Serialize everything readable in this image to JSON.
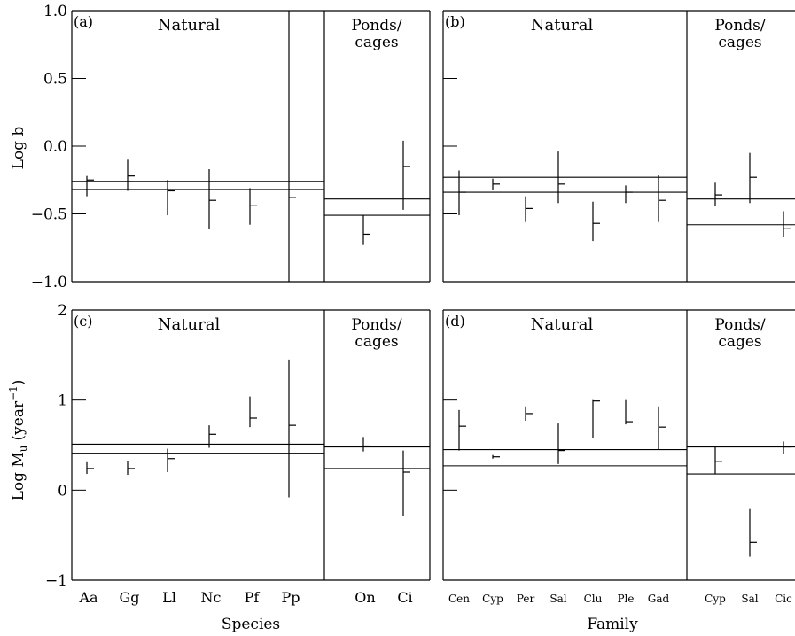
{
  "ylabels": {
    "top_main": "Log b",
    "bottom_main": "Log M",
    "bottom_sub": "u",
    "bottom_unit_open": "(year",
    "bottom_sup": "−1",
    "bottom_unit_close": ")"
  },
  "xlabels": {
    "left": "Species",
    "right": "Family"
  },
  "chart_data": [
    {
      "type": "error-bar",
      "panel_label": "(a)",
      "left_group": "Natural",
      "right_group": [
        "Ponds/",
        "cages"
      ],
      "ylim": [
        -1.0,
        1.0
      ],
      "yticks": [
        1.0,
        0.5,
        0.0,
        -0.5,
        -1.0
      ],
      "ytick_labels": [
        "1.0",
        "0.5",
        "0.0",
        "−0.5",
        "−1.0"
      ],
      "categories": [
        "Aa",
        "Gg",
        "Ll",
        "Nc",
        "Pf",
        "Pp",
        "On",
        "Ci"
      ],
      "n_natural": 6,
      "points": [
        {
          "mean": -0.25,
          "low": -0.37,
          "high": -0.22
        },
        {
          "mean": -0.22,
          "low": -0.33,
          "high": -0.1
        },
        {
          "mean": -0.33,
          "low": -0.51,
          "high": -0.25
        },
        {
          "mean": -0.4,
          "low": -0.61,
          "high": -0.17
        },
        {
          "mean": -0.44,
          "low": -0.58,
          "high": -0.31
        },
        {
          "mean": -0.38,
          "low": -1.0,
          "high": 1.0
        },
        {
          "mean": -0.65,
          "low": -0.73,
          "high": -0.51
        },
        {
          "mean": -0.15,
          "low": -0.47,
          "high": 0.04
        }
      ],
      "ref_lines": {
        "natural": [
          -0.26,
          -0.32
        ],
        "ponds": [
          -0.39,
          -0.51
        ]
      }
    },
    {
      "type": "error-bar",
      "panel_label": "(b)",
      "left_group": "Natural",
      "right_group": [
        "Ponds/",
        "cages"
      ],
      "ylim": [
        -1.0,
        1.0
      ],
      "yticks": [
        0.5,
        0.0,
        -0.5,
        -1.0
      ],
      "ytick_labels": [],
      "categories": [
        "Cen",
        "Cyp",
        "Per",
        "Sal",
        "Clu",
        "Ple",
        "Gad",
        "Cyp",
        "Sal",
        "Cic"
      ],
      "n_natural": 7,
      "points": [
        {
          "mean": -0.34,
          "low": -0.51,
          "high": -0.18
        },
        {
          "mean": -0.28,
          "low": -0.32,
          "high": -0.24
        },
        {
          "mean": -0.46,
          "low": -0.56,
          "high": -0.37
        },
        {
          "mean": -0.28,
          "low": -0.42,
          "high": -0.04
        },
        {
          "mean": -0.57,
          "low": -0.7,
          "high": -0.41
        },
        {
          "mean": -0.34,
          "low": -0.42,
          "high": -0.29
        },
        {
          "mean": -0.4,
          "low": -0.56,
          "high": -0.21
        },
        {
          "mean": -0.36,
          "low": -0.44,
          "high": -0.27
        },
        {
          "mean": -0.23,
          "low": -0.42,
          "high": -0.05
        },
        {
          "mean": -0.61,
          "low": -0.67,
          "high": -0.48
        }
      ],
      "ref_lines": {
        "natural": [
          -0.23,
          -0.34
        ],
        "ponds": [
          -0.39,
          -0.58
        ]
      }
    },
    {
      "type": "error-bar",
      "panel_label": "(c)",
      "left_group": "Natural",
      "right_group": [
        "Ponds/",
        "cages"
      ],
      "ylim": [
        -1,
        2
      ],
      "yticks": [
        2,
        1,
        0,
        -1
      ],
      "ytick_labels": [
        "2",
        "1",
        "0",
        "−1"
      ],
      "categories": [
        "Aa",
        "Gg",
        "Ll",
        "Nc",
        "Pf",
        "Pp",
        "On",
        "Ci"
      ],
      "n_natural": 6,
      "points": [
        {
          "mean": 0.24,
          "low": 0.18,
          "high": 0.31
        },
        {
          "mean": 0.24,
          "low": 0.17,
          "high": 0.32
        },
        {
          "mean": 0.35,
          "low": 0.2,
          "high": 0.46
        },
        {
          "mean": 0.62,
          "low": 0.47,
          "high": 0.72
        },
        {
          "mean": 0.8,
          "low": 0.7,
          "high": 1.04
        },
        {
          "mean": 0.72,
          "low": -0.08,
          "high": 1.45
        },
        {
          "mean": 0.49,
          "low": 0.43,
          "high": 0.59
        },
        {
          "mean": 0.2,
          "low": -0.29,
          "high": 0.44
        }
      ],
      "ref_lines": {
        "natural": [
          0.51,
          0.41
        ],
        "ponds": [
          0.48,
          0.24
        ]
      }
    },
    {
      "type": "error-bar",
      "panel_label": "(d)",
      "left_group": "Natural",
      "right_group": [
        "Ponds/",
        "cages"
      ],
      "ylim": [
        -1,
        2
      ],
      "yticks": [
        1,
        0,
        -1
      ],
      "ytick_labels": [],
      "categories": [
        "Cen",
        "Cyp",
        "Per",
        "Sal",
        "Clu",
        "Ple",
        "Gad",
        "Cyp",
        "Sal",
        "Cic"
      ],
      "n_natural": 7,
      "points": [
        {
          "mean": 0.71,
          "low": 0.44,
          "high": 0.89
        },
        {
          "mean": 0.37,
          "low": 0.35,
          "high": 0.39
        },
        {
          "mean": 0.85,
          "low": 0.77,
          "high": 0.93
        },
        {
          "mean": 0.44,
          "low": 0.29,
          "high": 0.74
        },
        {
          "mean": 0.99,
          "low": 0.58,
          "high": 1.0
        },
        {
          "mean": 0.76,
          "low": 0.73,
          "high": 1.0
        },
        {
          "mean": 0.7,
          "low": 0.45,
          "high": 0.93
        },
        {
          "mean": 0.32,
          "low": 0.18,
          "high": 0.48
        },
        {
          "mean": -0.58,
          "low": -0.74,
          "high": -0.21
        },
        {
          "mean": 0.48,
          "low": 0.4,
          "high": 0.54
        }
      ],
      "ref_lines": {
        "natural": [
          0.45,
          0.27
        ],
        "ponds": [
          0.48,
          0.18
        ]
      }
    }
  ]
}
